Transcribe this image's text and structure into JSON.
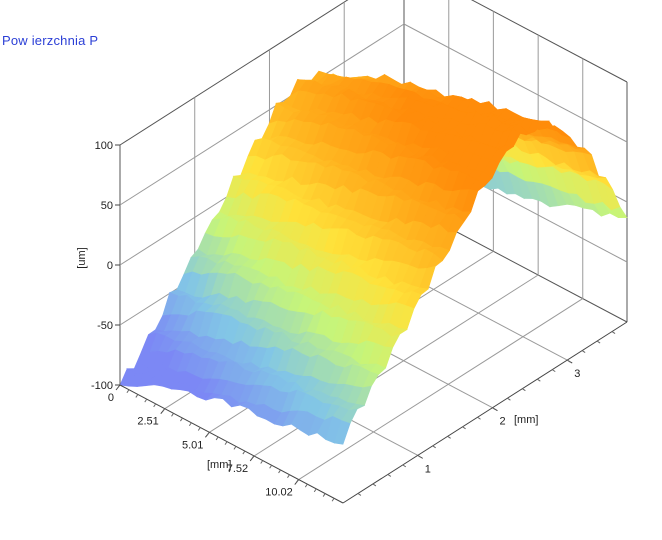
{
  "title": "Pow ierzchnia P",
  "chart_data": {
    "type": "surface",
    "title": "Pow ierzchnia P",
    "xlabel": "[mm]",
    "ylabel": "[mm]",
    "zlabel": "[um]",
    "x_ticks": [
      "0",
      "2.51",
      "5.01",
      "7.52",
      "10.02"
    ],
    "y_ticks": [
      "1",
      "2",
      "3"
    ],
    "z_ticks": [
      "100",
      "50",
      "0",
      "-50",
      "-100"
    ],
    "xlim": [
      0,
      12.5
    ],
    "ylim": [
      0,
      3.8
    ],
    "zlim": [
      -100,
      100
    ],
    "grid": true,
    "colormap": [
      "#7c88f5",
      "#82c6e6",
      "#c6f57a",
      "#ffe23a",
      "#ffb21e",
      "#ff8c0a"
    ],
    "surface_profile": {
      "description_axis": "z as function of y across the ridge",
      "y": [
        0,
        0.4,
        0.8,
        1.2,
        1.6,
        2.0,
        2.4,
        2.8,
        3.2,
        3.6,
        3.8
      ],
      "z": [
        -70,
        -45,
        -15,
        15,
        45,
        72,
        88,
        80,
        45,
        -5,
        -40
      ]
    },
    "surface_height_trend_x": {
      "x": [
        0,
        2.5,
        5.0,
        7.5,
        10.0,
        12.5
      ],
      "offset_z": [
        -30,
        -15,
        -5,
        5,
        15,
        25
      ]
    }
  }
}
